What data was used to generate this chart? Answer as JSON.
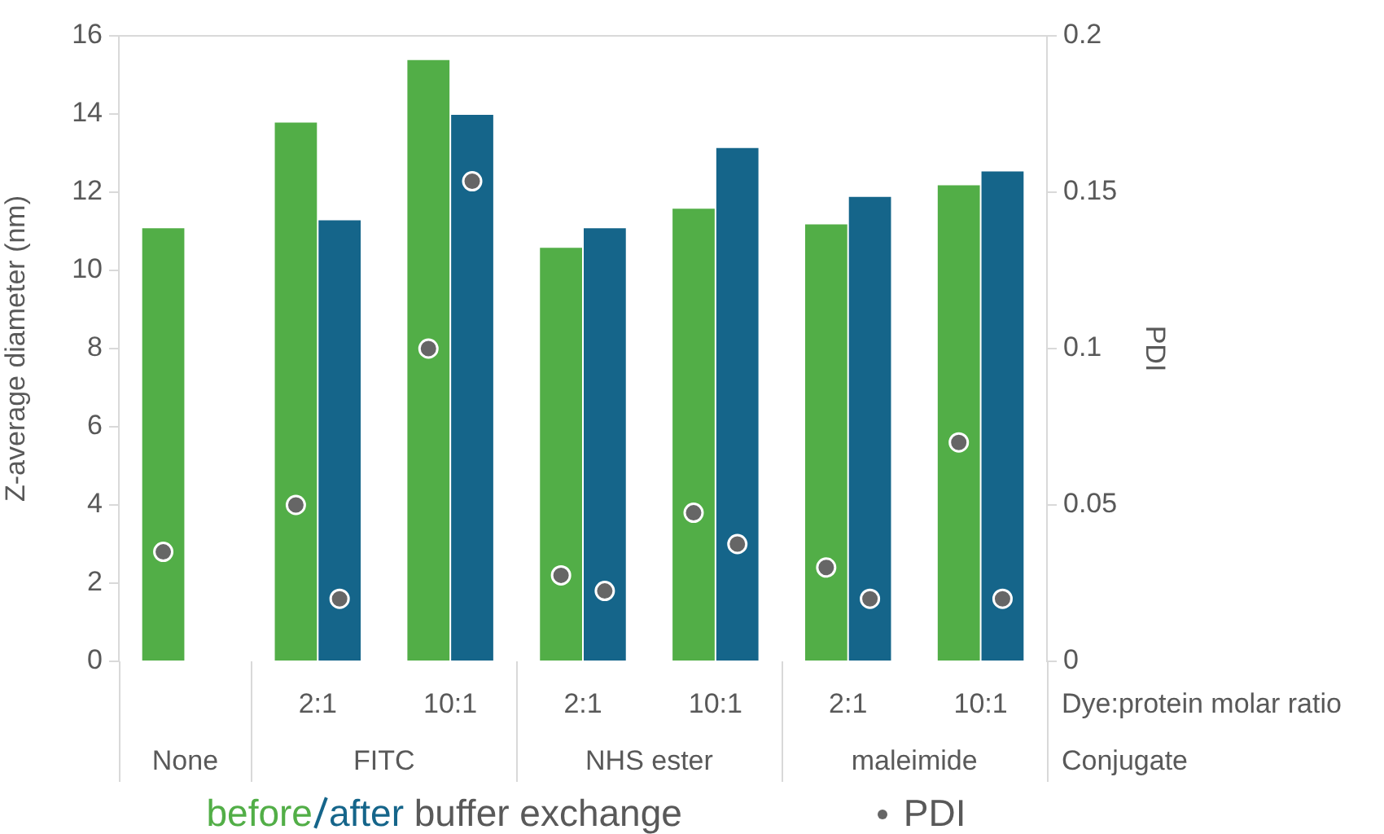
{
  "chart_data": {
    "type": "bar",
    "ylabel": "Z-average diameter (nm)",
    "y2label": "PDI",
    "xlabel": "Dye:protein molar ratio",
    "legend_title": "buffer exchange",
    "categories": [
      null,
      "2:1",
      "10:1",
      "2:1",
      "10:1",
      "2:1",
      "10:1"
    ],
    "annotations": [
      "None",
      "FITC",
      "NHS ester",
      "maleimide",
      "Conjugate"
    ],
    "series": [
      {
        "name": "before",
        "color": "#52ae47",
        "values": [
          11.1,
          13.8,
          15.4,
          10.6,
          11.6,
          11.2,
          12.2
        ]
      },
      {
        "name": "after",
        "color": "#15658a",
        "values": [
          null,
          11.3,
          14.0,
          11.1,
          13.15,
          11.9,
          12.55
        ]
      },
      {
        "name": "PDI",
        "type": "scatter",
        "axis": "y2",
        "color": "#666666",
        "values": [
          0.035,
          0.05,
          0.1,
          0.0275,
          0.0475,
          0.03,
          0.07
        ]
      },
      {
        "type": "scatter",
        "axis": "y2",
        "color": "#666666",
        "values": [
          null,
          0.02,
          0.1535,
          0.0225,
          0.0375,
          0.02,
          0.02
        ]
      }
    ],
    "ylim": [
      0,
      16
    ],
    "yticks": [
      0,
      2,
      4,
      6,
      8,
      10,
      12,
      14,
      16
    ],
    "y2lim": [
      0,
      0.2
    ],
    "y2ticks": [
      0,
      0.05,
      0.1,
      0.15,
      0.2
    ],
    "grid": false,
    "legend": "bottom",
    "marker": "circle"
  }
}
